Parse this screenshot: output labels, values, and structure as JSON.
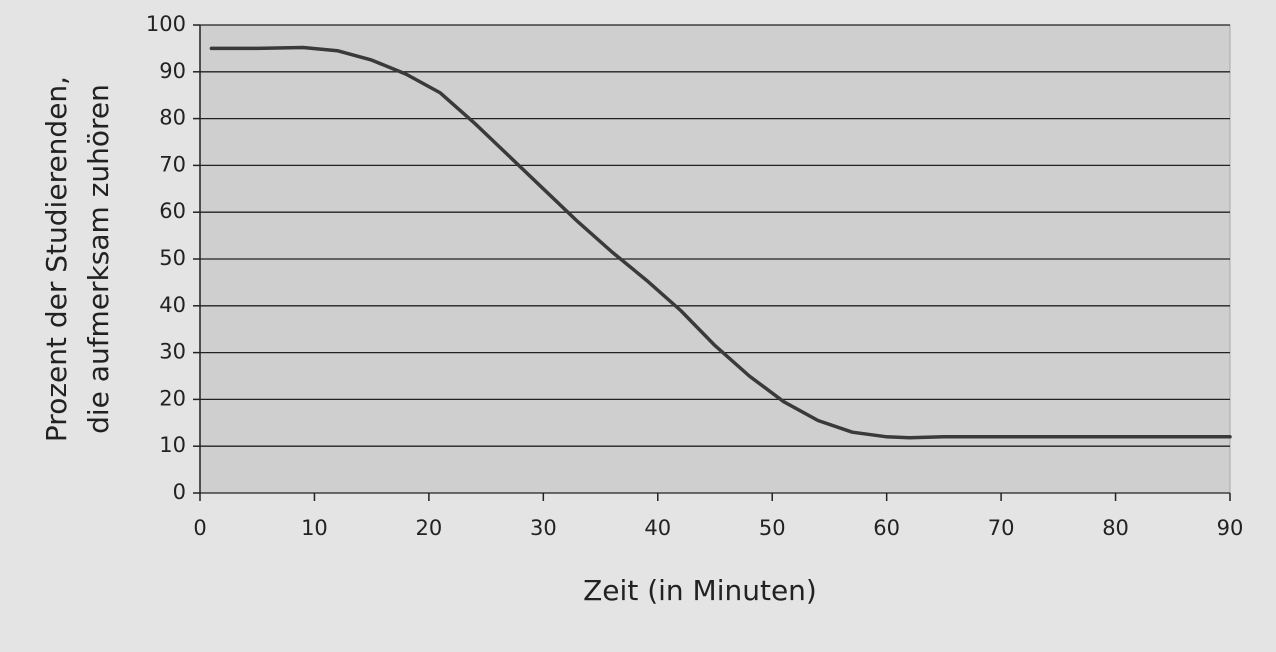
{
  "chart_data": {
    "type": "line",
    "ylabel": [
      "Prozent der Studierenden,",
      "die aufmerksam zuhören"
    ],
    "xlabel": "Zeit (in Minuten)",
    "x": [
      1,
      5,
      9,
      12,
      15,
      18,
      21,
      24,
      27,
      30,
      33,
      36,
      39,
      42,
      45,
      48,
      51,
      54,
      57,
      60,
      62,
      65,
      70,
      80,
      90
    ],
    "values": [
      95,
      95,
      95.2,
      94.5,
      92.5,
      89.5,
      85.5,
      79,
      72,
      65,
      58,
      51.5,
      45.5,
      39,
      31.5,
      25,
      19.5,
      15.5,
      13,
      12,
      11.8,
      12,
      12,
      12,
      12
    ],
    "color": "#3a3a3a",
    "xlim": [
      0,
      90
    ],
    "xticks": [
      0,
      10,
      20,
      30,
      40,
      50,
      60,
      70,
      80,
      90
    ],
    "ylim": [
      0,
      100
    ],
    "yticks": [
      0,
      10,
      20,
      30,
      40,
      50,
      60,
      70,
      80,
      90,
      100
    ],
    "grid": true
  }
}
